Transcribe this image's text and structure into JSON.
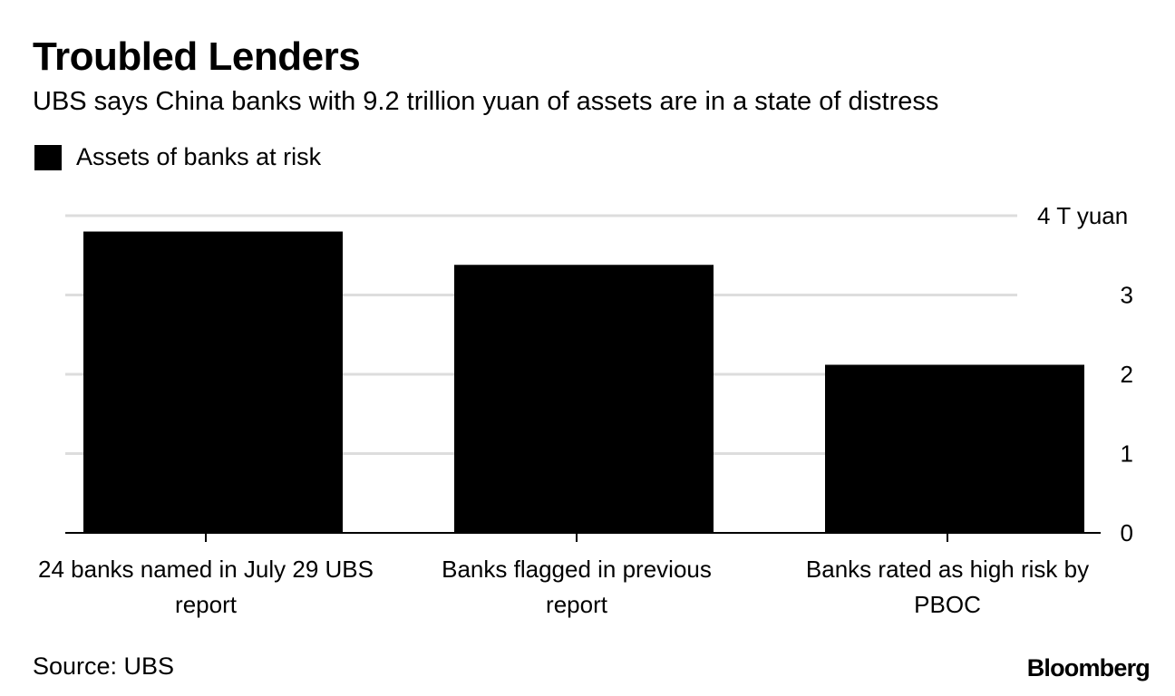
{
  "header": {
    "title": "Troubled Lenders",
    "subtitle": "UBS says China banks with 9.2 trillion yuan of assets are in a state of distress"
  },
  "legend": {
    "label": "Assets of banks at risk",
    "color": "#000000"
  },
  "chart_data": {
    "type": "bar",
    "categories": [
      [
        "24 banks named in July 29 UBS",
        "report"
      ],
      [
        "Banks flagged in previous",
        "report"
      ],
      [
        "Banks rated as high risk by",
        "PBOC"
      ]
    ],
    "series": [
      {
        "name": "Assets of banks at risk",
        "values": [
          3.8,
          3.38,
          2.12
        ],
        "color": "#000000"
      }
    ],
    "ylim": [
      0,
      4
    ],
    "yticks": [
      0,
      1,
      2,
      3,
      4
    ],
    "ytick_labels": [
      "0",
      "1",
      "2",
      "3",
      "4 T yuan"
    ],
    "y_axis_position": "right",
    "grid": true,
    "gridline_color": "#dddddd"
  },
  "footer": {
    "source": "Source: UBS",
    "brand": "Bloomberg"
  }
}
